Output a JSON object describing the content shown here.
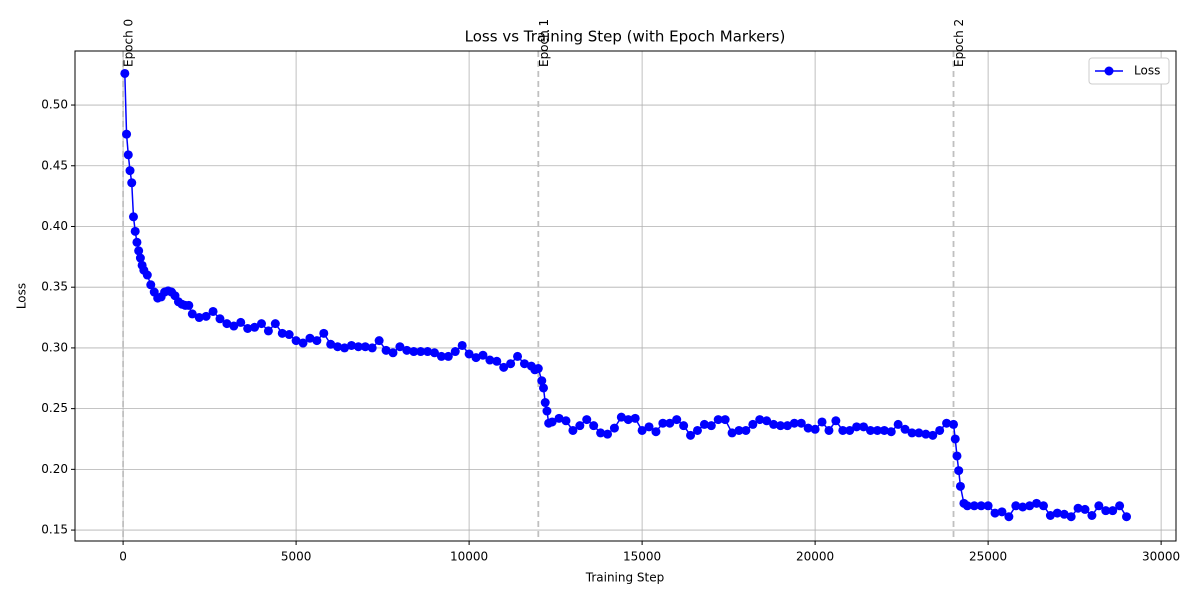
{
  "chart_data": {
    "type": "line",
    "title": "Loss vs Training Step (with Epoch Markers)",
    "x_label": "Training Step",
    "y_label": "Loss",
    "x": [
      50,
      100,
      150,
      200,
      250,
      300,
      350,
      400,
      450,
      500,
      550,
      600,
      700,
      800,
      900,
      1000,
      1100,
      1200,
      1300,
      1400,
      1500,
      1600,
      1700,
      1800,
      1900,
      2000,
      2200,
      2400,
      2600,
      2800,
      3000,
      3200,
      3400,
      3600,
      3800,
      4000,
      4200,
      4400,
      4600,
      4800,
      5000,
      5200,
      5400,
      5600,
      5800,
      6000,
      6200,
      6400,
      6600,
      6800,
      7000,
      7200,
      7400,
      7600,
      7800,
      8000,
      8200,
      8400,
      8600,
      8800,
      9000,
      9200,
      9400,
      9600,
      9800,
      10000,
      10200,
      10400,
      10600,
      10800,
      11000,
      11200,
      11400,
      11600,
      11800,
      11900,
      12000,
      12100,
      12150,
      12200,
      12250,
      12300,
      12400,
      12600,
      12800,
      13000,
      13200,
      13400,
      13600,
      13800,
      14000,
      14200,
      14400,
      14600,
      14800,
      15000,
      15200,
      15400,
      15600,
      15800,
      16000,
      16200,
      16400,
      16600,
      16800,
      17000,
      17200,
      17400,
      17600,
      17800,
      18000,
      18200,
      18400,
      18600,
      18800,
      19000,
      19200,
      19400,
      19600,
      19800,
      20000,
      20200,
      20400,
      20600,
      20800,
      21000,
      21200,
      21400,
      21600,
      21800,
      22000,
      22200,
      22400,
      22600,
      22800,
      23000,
      23200,
      23400,
      23600,
      23800,
      24000,
      24050,
      24100,
      24150,
      24200,
      24300,
      24400,
      24600,
      24800,
      25000,
      25200,
      25400,
      25600,
      25800,
      26000,
      26200,
      26400,
      26600,
      26800,
      27000,
      27200,
      27400,
      27600,
      27800,
      28000,
      28200,
      28400,
      28600,
      28800,
      29000
    ],
    "series": [
      {
        "name": "Loss",
        "color": "#0000ff",
        "values": [
          0.526,
          0.476,
          0.459,
          0.446,
          0.436,
          0.408,
          0.396,
          0.387,
          0.38,
          0.374,
          0.368,
          0.364,
          0.36,
          0.352,
          0.346,
          0.341,
          0.342,
          0.346,
          0.347,
          0.346,
          0.343,
          0.338,
          0.336,
          0.335,
          0.335,
          0.328,
          0.325,
          0.326,
          0.33,
          0.324,
          0.32,
          0.318,
          0.321,
          0.316,
          0.317,
          0.32,
          0.314,
          0.32,
          0.312,
          0.311,
          0.306,
          0.304,
          0.308,
          0.306,
          0.312,
          0.303,
          0.301,
          0.3,
          0.302,
          0.301,
          0.301,
          0.3,
          0.306,
          0.298,
          0.296,
          0.301,
          0.298,
          0.297,
          0.297,
          0.297,
          0.296,
          0.293,
          0.293,
          0.297,
          0.302,
          0.295,
          0.292,
          0.294,
          0.29,
          0.289,
          0.284,
          0.287,
          0.293,
          0.287,
          0.285,
          0.282,
          0.283,
          0.273,
          0.267,
          0.255,
          0.248,
          0.238,
          0.239,
          0.242,
          0.24,
          0.232,
          0.236,
          0.241,
          0.236,
          0.23,
          0.229,
          0.234,
          0.243,
          0.241,
          0.242,
          0.232,
          0.235,
          0.231,
          0.238,
          0.238,
          0.241,
          0.236,
          0.228,
          0.232,
          0.237,
          0.236,
          0.241,
          0.241,
          0.23,
          0.232,
          0.232,
          0.237,
          0.241,
          0.24,
          0.237,
          0.236,
          0.236,
          0.238,
          0.238,
          0.234,
          0.233,
          0.239,
          0.232,
          0.24,
          0.232,
          0.232,
          0.235,
          0.235,
          0.232,
          0.232,
          0.232,
          0.231,
          0.237,
          0.233,
          0.23,
          0.23,
          0.229,
          0.228,
          0.232,
          0.238,
          0.237,
          0.225,
          0.211,
          0.199,
          0.186,
          0.172,
          0.17,
          0.17,
          0.17,
          0.17,
          0.164,
          0.165,
          0.161,
          0.17,
          0.169,
          0.17,
          0.172,
          0.17,
          0.162,
          0.164,
          0.163,
          0.161,
          0.168,
          0.167,
          0.162,
          0.17,
          0.166,
          0.166,
          0.17,
          0.161
        ]
      }
    ],
    "xlim": [
      -1390,
      30430
    ],
    "ylim": [
      0.141,
      0.5445
    ],
    "xticks": [
      0,
      5000,
      10000,
      15000,
      20000,
      25000,
      30000
    ],
    "yticks": [
      0.15,
      {
        "value": 0.2,
        "label": "0.20"
      },
      0.25,
      {
        "value": 0.3,
        "label": "0.30"
      },
      0.35,
      {
        "value": 0.4,
        "label": "0.40"
      },
      0.45,
      {
        "value": 0.5,
        "label": "0.50"
      }
    ],
    "grid": true,
    "legend": "upper right",
    "epoch_markers": [
      {
        "value": 0,
        "label": "Epoch 0"
      },
      {
        "value": 12000,
        "label": "Epoch 1"
      },
      {
        "value": 24000,
        "label": "Epoch 2"
      }
    ]
  }
}
